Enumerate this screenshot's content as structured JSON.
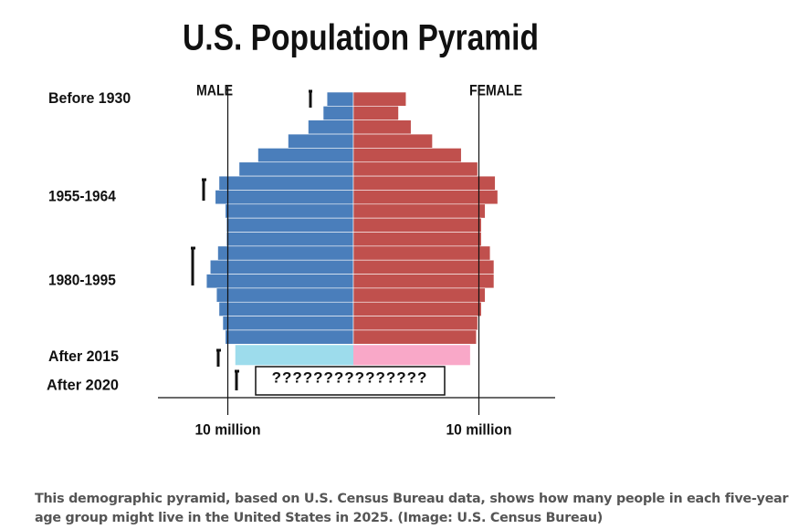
{
  "chart_data": {
    "type": "pyramid",
    "title": "U.S. Population Pyramid",
    "categories": [
      "Before 1930",
      null,
      null,
      null,
      null,
      null,
      null,
      "1955-1964",
      null,
      null,
      null,
      null,
      null,
      "1980-1995",
      null,
      null,
      null,
      null
    ],
    "series": [
      {
        "name": "MALE",
        "color": "#4a7ebb",
        "values": [
          2.1,
          2.4,
          3.6,
          5.2,
          7.6,
          9.1,
          10.7,
          11.0,
          10.2,
          10.1,
          10.1,
          10.8,
          11.4,
          11.7,
          10.9,
          10.7,
          10.4,
          10.2
        ]
      },
      {
        "name": "FEMALE",
        "color": "#c0504d",
        "values": [
          4.2,
          3.6,
          4.6,
          6.3,
          8.6,
          9.9,
          11.3,
          11.5,
          10.5,
          10.2,
          10.2,
          10.9,
          11.2,
          11.2,
          10.5,
          10.2,
          9.9,
          9.8
        ]
      }
    ],
    "projection": {
      "category": "After 2015",
      "values": [
        9.4,
        9.3
      ],
      "colors": [
        "#9ddcec",
        "#f9a8c8"
      ]
    },
    "unknown": {
      "category": "After 2020",
      "label": "???????????????"
    },
    "scale": {
      "value": 10,
      "label": "10 million"
    },
    "caption": "This demographic pyramid, based on U.S. Census Bureau data, shows how many people in each five-year age group might live in the United States in 2025. (Image: U.S. Census Bureau)"
  }
}
